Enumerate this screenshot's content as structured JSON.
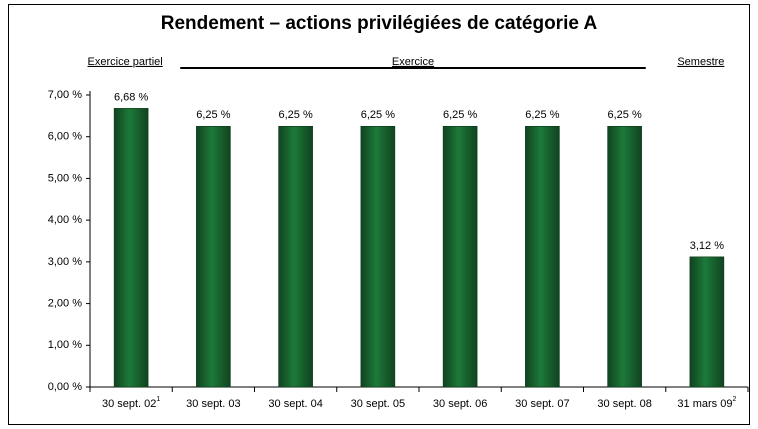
{
  "chart_data": {
    "type": "bar",
    "title": "Rendement – actions privilégiées de catégorie A",
    "groups": [
      "Exercice partiel",
      "Exercice",
      "Semestre"
    ],
    "categories": [
      "30 sept. 02",
      "30 sept. 03",
      "30 sept. 04",
      "30 sept. 05",
      "30 sept. 06",
      "30 sept. 07",
      "30 sept. 08",
      "31 mars 09"
    ],
    "category_footnotes": [
      "1",
      null,
      null,
      null,
      null,
      null,
      null,
      "2"
    ],
    "values": [
      6.68,
      6.25,
      6.25,
      6.25,
      6.25,
      6.25,
      6.25,
      3.12
    ],
    "value_labels": [
      "6,68 %",
      "6,25 %",
      "6,25 %",
      "6,25 %",
      "6,25 %",
      "6,25 %",
      "6,25 %",
      "3,12 %"
    ],
    "color": "#1d7a3a",
    "ylim": [
      0,
      7
    ],
    "yticks": [
      {
        "value": 0,
        "label": "0,00 %"
      },
      {
        "value": 1,
        "label": "1,00 %"
      },
      {
        "value": 2,
        "label": "2,00 %"
      },
      {
        "value": 3,
        "label": "3,00 %"
      },
      {
        "value": 4,
        "label": "4,00 %"
      },
      {
        "value": 5,
        "label": "5,00 %"
      },
      {
        "value": 6,
        "label": "6,00 %"
      },
      {
        "value": 7,
        "label": "7,00 %"
      }
    ],
    "grid": false
  }
}
